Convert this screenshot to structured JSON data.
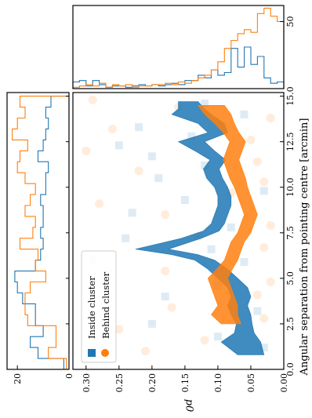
{
  "chart_data": [
    {
      "panel": "main",
      "type": "scatter",
      "note_orientation": "figure rotated 90 degrees clockwise",
      "xlabel": "Angular separation from pointing centre [arcmin]",
      "ylabel": "p0",
      "xlim": [
        0,
        15.2
      ],
      "ylim": [
        0,
        0.32
      ],
      "x_ticks": [
        "0.0",
        "2.5",
        "5.0",
        "7.5",
        "10.0",
        "12.5",
        "15.0"
      ],
      "y_ticks": [
        "0.00",
        "0.05",
        "0.10",
        "0.15",
        "0.20",
        "0.25",
        "0.30"
      ],
      "legend_position": "lower-left",
      "series": [
        {
          "name": "Inside cluster",
          "color": "#1f77b4",
          "marker": "square",
          "band": {
            "x": [
              0.8,
              1.5,
              2.0,
              2.5,
              3.0,
              3.5,
              4.0,
              4.5,
              5.0,
              5.5,
              6.0,
              6.3,
              6.6,
              6.9,
              7.2,
              7.6,
              8.0,
              8.5,
              9.0,
              9.5,
              10.0,
              10.5,
              11.0,
              11.5,
              12.0,
              12.5,
              13.0,
              13.5,
              14.0,
              14.3,
              14.7
            ],
            "center": [
              0.05,
              0.065,
              0.06,
              0.06,
              0.065,
              0.07,
              0.065,
              0.07,
              0.085,
              0.1,
              0.12,
              0.15,
              0.2,
              0.17,
              0.14,
              0.11,
              0.1,
              0.095,
              0.09,
              0.09,
              0.095,
              0.105,
              0.11,
              0.1,
              0.12,
              0.14,
              0.1,
              0.11,
              0.14,
              0.14,
              0.145
            ],
            "halfwidth": [
              0.02,
              0.03,
              0.015,
              0.012,
              0.015,
              0.015,
              0.015,
              0.015,
              0.015,
              0.015,
              0.015,
              0.02,
              0.025,
              0.02,
              0.015,
              0.012,
              0.01,
              0.01,
              0.01,
              0.01,
              0.01,
              0.012,
              0.012,
              0.012,
              0.015,
              0.02,
              0.015,
              0.02,
              0.03,
              0.02,
              0.015
            ]
          },
          "points": [
            [
              1.2,
              0.03
            ],
            [
              1.8,
              0.1
            ],
            [
              2.5,
              0.2
            ],
            [
              3.2,
              0.04
            ],
            [
              4.0,
              0.18
            ],
            [
              4.6,
              0.1
            ],
            [
              5.2,
              0.27
            ],
            [
              5.9,
              0.06
            ],
            [
              6.6,
              0.11
            ],
            [
              7.2,
              0.24
            ],
            [
              7.8,
              0.08
            ],
            [
              8.6,
              0.23
            ],
            [
              9.3,
              0.15
            ],
            [
              9.8,
              0.03
            ],
            [
              10.5,
              0.19
            ],
            [
              11.2,
              0.12
            ],
            [
              11.7,
              0.2
            ],
            [
              12.3,
              0.25
            ],
            [
              12.8,
              0.14
            ],
            [
              13.3,
              0.22
            ],
            [
              14.0,
              0.06
            ],
            [
              14.6,
              0.12
            ]
          ]
        },
        {
          "name": "Behind cluster",
          "color": "#ff7f0e",
          "marker": "circle",
          "band": {
            "x": [
              2.5,
              3.0,
              3.5,
              4.0,
              4.5,
              5.0,
              5.5,
              6.0,
              6.5,
              7.0,
              7.5,
              8.0,
              8.5,
              9.0,
              9.5,
              10.0,
              10.5,
              11.0,
              11.5,
              12.0,
              12.5,
              13.0,
              13.5,
              14.0,
              14.5
            ],
            "center": [
              0.08,
              0.09,
              0.085,
              0.09,
              0.095,
              0.1,
              0.09,
              0.08,
              0.075,
              0.07,
              0.06,
              0.055,
              0.05,
              0.055,
              0.06,
              0.065,
              0.07,
              0.075,
              0.08,
              0.075,
              0.07,
              0.08,
              0.09,
              0.1,
              0.11
            ],
            "halfwidth": [
              0.015,
              0.02,
              0.015,
              0.015,
              0.015,
              0.015,
              0.012,
              0.01,
              0.01,
              0.01,
              0.01,
              0.01,
              0.01,
              0.01,
              0.01,
              0.01,
              0.012,
              0.012,
              0.012,
              0.012,
              0.012,
              0.012,
              0.015,
              0.02,
              0.02
            ]
          },
          "points": [
            [
              1.0,
              0.21
            ],
            [
              1.6,
              0.12
            ],
            [
              2.2,
              0.25
            ],
            [
              2.8,
              0.03
            ],
            [
              3.4,
              0.17
            ],
            [
              4.1,
              0.04
            ],
            [
              4.8,
              0.02
            ],
            [
              5.4,
              0.18
            ],
            [
              6.0,
              0.29
            ],
            [
              6.7,
              0.03
            ],
            [
              7.3,
              0.13
            ],
            [
              7.9,
              0.02
            ],
            [
              8.5,
              0.18
            ],
            [
              9.1,
              0.28
            ],
            [
              9.7,
              0.08
            ],
            [
              10.3,
              0.03
            ],
            [
              10.9,
              0.22
            ],
            [
              11.4,
              0.04
            ],
            [
              12.0,
              0.3
            ],
            [
              12.6,
              0.05
            ],
            [
              13.2,
              0.26
            ],
            [
              13.8,
              0.02
            ],
            [
              14.4,
              0.16
            ],
            [
              14.8,
              0.29
            ]
          ]
        }
      ]
    },
    {
      "panel": "top-histogram",
      "type": "bar",
      "xlim": [
        0,
        0.32
      ],
      "ylim": [
        0,
        62
      ],
      "y_ticks": [
        "50"
      ],
      "series": [
        {
          "name": "Inside cluster",
          "color": "#1f77b4",
          "bin_edges": [
            0.0,
            0.01,
            0.02,
            0.03,
            0.04,
            0.05,
            0.06,
            0.07,
            0.08,
            0.09,
            0.1,
            0.11,
            0.12,
            0.13,
            0.14,
            0.15,
            0.16,
            0.17,
            0.18,
            0.19,
            0.2,
            0.21,
            0.22,
            0.23,
            0.24,
            0.25,
            0.26,
            0.27,
            0.28,
            0.29,
            0.3,
            0.31,
            0.32
          ],
          "counts": [
            5,
            4,
            8,
            24,
            18,
            31,
            16,
            30,
            12,
            10,
            14,
            8,
            10,
            6,
            6,
            3,
            4,
            3,
            2,
            3,
            2,
            3,
            2,
            1,
            2,
            2,
            1,
            3,
            6,
            2,
            6,
            5
          ]
        },
        {
          "name": "Behind cluster",
          "color": "#ff7f0e",
          "bin_edges": [
            0.0,
            0.01,
            0.02,
            0.03,
            0.04,
            0.05,
            0.06,
            0.07,
            0.08,
            0.09,
            0.1,
            0.11,
            0.12,
            0.13,
            0.14,
            0.15,
            0.16,
            0.17,
            0.18,
            0.19,
            0.2,
            0.21,
            0.22,
            0.23,
            0.24,
            0.25,
            0.26,
            0.27,
            0.28,
            0.29,
            0.3,
            0.31,
            0.32
          ],
          "counts": [
            50,
            54,
            60,
            56,
            42,
            44,
            41,
            36,
            30,
            20,
            14,
            10,
            8,
            6,
            4,
            5,
            3,
            4,
            3,
            3,
            2,
            2,
            1,
            3,
            2,
            3,
            1,
            4,
            2,
            3,
            2,
            1
          ]
        }
      ]
    },
    {
      "panel": "left-histogram",
      "type": "bar",
      "xlim": [
        0,
        15.2
      ],
      "ylim": [
        0,
        24
      ],
      "y_ticks": [
        "0",
        "20"
      ],
      "series": [
        {
          "name": "Inside cluster",
          "color": "#1f77b4",
          "bin_edges": [
            0.0,
            0.6,
            1.2,
            1.8,
            2.4,
            3.0,
            3.6,
            4.2,
            4.8,
            5.4,
            6.0,
            6.6,
            7.2,
            7.8,
            8.4,
            9.0,
            9.6,
            10.2,
            10.8,
            11.4,
            12.0,
            12.6,
            13.2,
            13.8,
            14.4,
            15.0
          ],
          "counts": [
            2,
            12,
            15,
            10,
            13,
            13,
            18,
            20,
            21,
            13,
            11,
            10,
            11,
            10,
            10,
            11,
            9,
            9,
            8,
            12,
            10,
            9,
            8,
            9,
            7
          ]
        },
        {
          "name": "Behind cluster",
          "color": "#ff7f0e",
          "bin_edges": [
            0.0,
            0.6,
            1.2,
            1.8,
            2.4,
            3.0,
            3.6,
            4.2,
            4.8,
            5.4,
            6.0,
            6.6,
            7.2,
            7.8,
            8.4,
            9.0,
            9.6,
            10.2,
            10.8,
            11.4,
            12.0,
            12.6,
            13.2,
            13.8,
            14.4,
            15.0
          ],
          "counts": [
            1,
            8,
            5,
            5,
            16,
            17,
            17,
            15,
            9,
            13,
            12,
            19,
            14,
            13,
            17,
            15,
            13,
            17,
            20,
            19,
            16,
            22,
            20,
            17,
            19
          ]
        }
      ]
    }
  ]
}
